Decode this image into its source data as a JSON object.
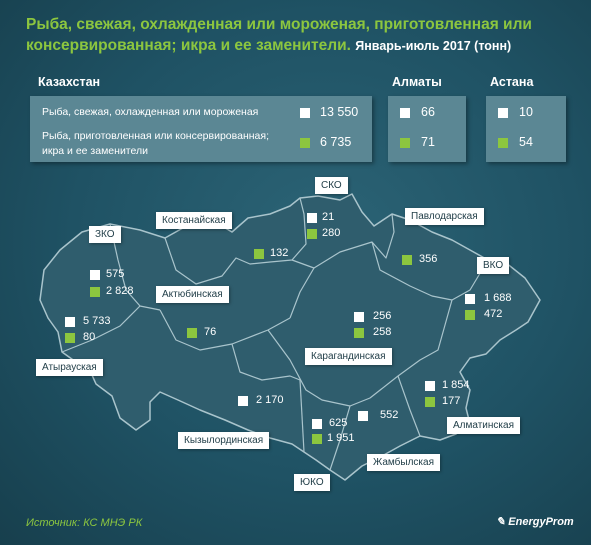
{
  "title": {
    "main": "Рыба, свежая, охлажденная или мороженая, приготовленная или консервированная; икра и ее заменители.",
    "period": "Январь-июль  2017 (тонн)"
  },
  "legend": {
    "white_label": "Рыба, свежая, охлажденная или мороженая",
    "green_label": "Рыба, приготовленная или консервированная; икра и ее заменители"
  },
  "summary": {
    "kazakhstan": {
      "label": "Казахстан",
      "fresh": "13 550",
      "prepared": "6 735"
    },
    "almaty": {
      "label": "Алматы",
      "fresh": "66",
      "prepared": "71"
    },
    "astana": {
      "label": "Астана",
      "fresh": "10",
      "prepared": "54"
    }
  },
  "regions": {
    "sko": {
      "name": "СКО",
      "fresh": "21",
      "prepared": "280"
    },
    "kostanay": {
      "name": "Костанайская",
      "prepared": "132"
    },
    "pavlodar": {
      "name": "Павлодарская",
      "prepared": "356"
    },
    "zko": {
      "name": "ЗКО",
      "fresh": "575",
      "prepared": "2 828"
    },
    "vko": {
      "name": "ВКО",
      "fresh": "1 688",
      "prepared": "472"
    },
    "aktobe": {
      "name": "Актюбинская",
      "prepared": "76"
    },
    "atyrau": {
      "name": "Атырауская",
      "fresh": "5 733",
      "prepared": "80"
    },
    "karaganda": {
      "name": "Карагандинская",
      "fresh": "256",
      "prepared": "258"
    },
    "kyzylorda": {
      "name": "Кызылординская",
      "fresh": "2 170"
    },
    "almaty_obl": {
      "name": "Алматинская",
      "fresh": "1 854",
      "prepared": "177"
    },
    "zhambyl": {
      "name": "Жамбылская",
      "fresh": "552"
    },
    "uko": {
      "name": "ЮКО",
      "fresh": "625",
      "prepared": "1 951"
    }
  },
  "colors": {
    "fresh": "#ffffff",
    "prepared": "#8cc63f",
    "title": "#8cc63f"
  },
  "source": "Источник: КС МНЭ РК",
  "logo": "EnergyProm"
}
